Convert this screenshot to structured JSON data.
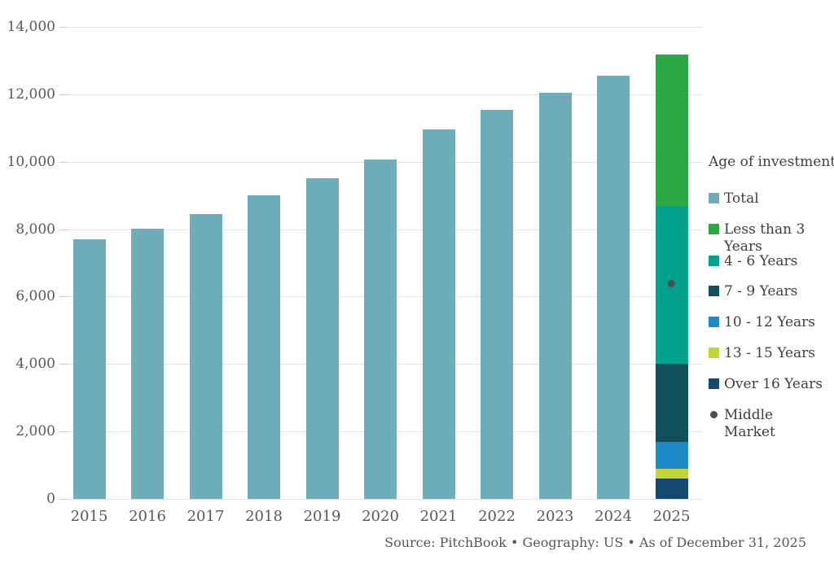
{
  "chart_data": {
    "type": "bar",
    "title": "",
    "xlabel": "",
    "ylabel": "",
    "ylim": [
      0,
      14000
    ],
    "grid": true,
    "legend_position": "right",
    "y_tick_values": [
      0,
      2000,
      4000,
      6000,
      8000,
      10000,
      12000,
      14000
    ],
    "y_tick_labels": [
      "0",
      "2,000",
      "4,000",
      "6,000",
      "8,000",
      "10,000",
      "12,000",
      "14,000"
    ],
    "categories": [
      "2015",
      "2016",
      "2017",
      "2018",
      "2019",
      "2020",
      "2021",
      "2022",
      "2023",
      "2024",
      "2025"
    ],
    "total_bar_color": "#6fadbb",
    "total_series": {
      "name": "Total",
      "note": "plain teal bars for 2015-2024; 2025 is a stacked bar by age of investment",
      "values": [
        7700,
        8020,
        8460,
        9000,
        9500,
        10070,
        10950,
        11540,
        12050,
        12550,
        null
      ]
    },
    "stacked_2025": {
      "category": "2025",
      "total": 13180,
      "segments_bottom_to_top": [
        {
          "name": "Over 16 Years",
          "value": 600,
          "color": "#15496f"
        },
        {
          "name": "13 - 15 Years",
          "value": 290,
          "color": "#c3d434"
        },
        {
          "name": "10 - 12 Years",
          "value": 800,
          "color": "#1c89c8"
        },
        {
          "name": "7 - 9 Years",
          "value": 2310,
          "color": "#11505a"
        },
        {
          "name": "4 - 6 Years",
          "value": 4670,
          "color": "#00a28d"
        },
        {
          "name": "Less than 3 Years",
          "value": 4510,
          "color": "#2aa945"
        }
      ]
    },
    "middle_market_marker": {
      "category": "2025",
      "value": 6390,
      "color": "#4d4d4f"
    }
  },
  "legend": {
    "title": "Age of investment",
    "items": [
      {
        "label": "Total",
        "color": "#6fadbb",
        "shape": "square"
      },
      {
        "label": "Less than 3\nYears",
        "color": "#2aa945",
        "shape": "square"
      },
      {
        "label": "4 - 6 Years",
        "color": "#00a28d",
        "shape": "square"
      },
      {
        "label": "7 - 9 Years",
        "color": "#11505a",
        "shape": "square"
      },
      {
        "label": "10 - 12 Years",
        "color": "#1c89c8",
        "shape": "square"
      },
      {
        "label": "13 - 15 Years",
        "color": "#c3d434",
        "shape": "square"
      },
      {
        "label": "Over 16 Years",
        "color": "#15496f",
        "shape": "square"
      },
      {
        "label": "Middle Market",
        "color": "#4d4d4f",
        "shape": "dot"
      }
    ]
  },
  "footer": {
    "source_text": "Source: PitchBook  •  Geography: US  •  As of December 31, 2025"
  },
  "palette": {
    "gridline": "#e4e4e4",
    "axis_text": "#57585a",
    "legend_text": "#3d3e40",
    "background": "#ffffff"
  }
}
